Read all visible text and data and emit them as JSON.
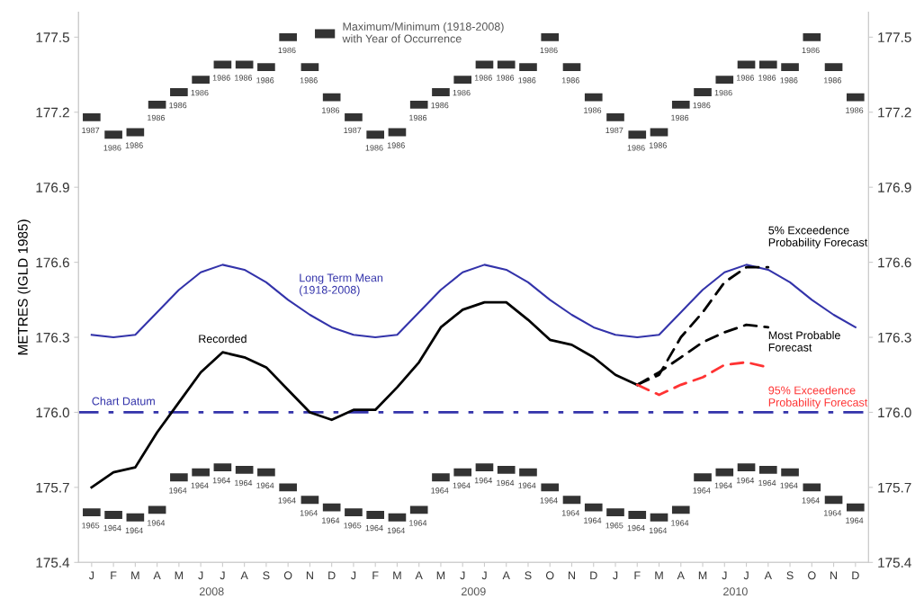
{
  "chart_data": {
    "type": "line",
    "ylabel": "METRES (IGLD 1985)",
    "categories": [
      "J",
      "F",
      "M",
      "A",
      "M",
      "J",
      "J",
      "A",
      "S",
      "O",
      "N",
      "D",
      "J",
      "F",
      "M",
      "A",
      "M",
      "J",
      "J",
      "A",
      "S",
      "O",
      "N",
      "D",
      "J",
      "F",
      "M",
      "A",
      "M",
      "J",
      "J",
      "A",
      "S",
      "O",
      "N",
      "D"
    ],
    "ylim": [
      175.4,
      177.6
    ],
    "yticks": [
      175.4,
      175.7,
      {
        "value": 176,
        "label": "176.0"
      },
      176.3,
      176.6,
      176.9,
      177.2,
      177.5
    ],
    "y2lim": [
      175.4,
      177.6
    ],
    "y2ticks": [
      175.4,
      175.7,
      {
        "value": 176,
        "label": "176.0"
      },
      176.3,
      176.6,
      176.9,
      177.2,
      177.5
    ],
    "grid": false,
    "legend": "top",
    "annotations": [
      "2008",
      "2009",
      "2010",
      "1987",
      "1986",
      "1986",
      "1986",
      "1986",
      "1986",
      "1986",
      "1986",
      "1986",
      "1986",
      "1986",
      "1986",
      "1987",
      "1986",
      "1986",
      "1986",
      "1986",
      "1986",
      "1986",
      "1986",
      "1986",
      "1986",
      "1986",
      "1986",
      "1987",
      "1986",
      "1986",
      "1986",
      "1986",
      "1986",
      "1986",
      "1986",
      "1986",
      "1986",
      "1986",
      "1986",
      "1965",
      "1964",
      "1964",
      "1964",
      "1964",
      "1964",
      "1964",
      "1964",
      "1964",
      "1964",
      "1964",
      "1964",
      "1965",
      "1964",
      "1964",
      "1964",
      "1964",
      "1964",
      "1964",
      "1964",
      "1964",
      "1964",
      "1964",
      "1964",
      "1965",
      "1964",
      "1964",
      "1964",
      "1964",
      "1964",
      "1964",
      "1964",
      "1964",
      "1964",
      "1964",
      "1964"
    ],
    "ref_lines": [
      {
        "axis": "y",
        "value": 176.0,
        "label": "Chart Datum",
        "color": "#3333aa",
        "line_style": "dashdot"
      }
    ],
    "series": [
      {
        "name": "Maximum/Minimum (1918-2008)\nwith Year of Occurrence",
        "type": "scatter",
        "marker": "square",
        "color": "#333333",
        "values": [
          177.18,
          177.11,
          177.12,
          177.23,
          177.28,
          177.33,
          177.39,
          177.39,
          177.38,
          177.5,
          177.38,
          177.26,
          177.18,
          177.11,
          177.12,
          177.23,
          177.28,
          177.33,
          177.39,
          177.39,
          177.38,
          177.5,
          177.38,
          177.26,
          177.18,
          177.11,
          177.12,
          177.23,
          177.28,
          177.33,
          177.39,
          177.39,
          177.38,
          177.5,
          177.38,
          177.26
        ]
      },
      {
        "type": "scatter",
        "marker": "square",
        "color": "#333333",
        "values": [
          175.6,
          175.59,
          175.58,
          175.61,
          175.74,
          175.76,
          175.78,
          175.77,
          175.76,
          175.7,
          175.65,
          175.62,
          175.6,
          175.59,
          175.58,
          175.61,
          175.74,
          175.76,
          175.78,
          175.77,
          175.76,
          175.7,
          175.65,
          175.62,
          175.6,
          175.59,
          175.58,
          175.61,
          175.74,
          175.76,
          175.78,
          175.77,
          175.76,
          175.7,
          175.65,
          175.62
        ]
      },
      {
        "name": "Long Term Mean\n(1918-2008)",
        "color": "#3333aa",
        "line_style": "solid",
        "values": [
          176.31,
          176.3,
          176.31,
          176.4,
          176.49,
          176.56,
          176.59,
          176.57,
          176.52,
          176.45,
          176.39,
          176.34,
          176.31,
          176.3,
          176.31,
          176.4,
          176.49,
          176.56,
          176.59,
          176.57,
          176.52,
          176.45,
          176.39,
          176.34,
          176.31,
          176.3,
          176.31,
          176.4,
          176.49,
          176.56,
          176.59,
          176.57,
          176.52,
          176.45,
          176.39,
          176.34
        ]
      },
      {
        "name": "Recorded",
        "color": "#000000",
        "line_style": "solid",
        "values": [
          175.7,
          175.76,
          175.78,
          175.92,
          176.04,
          176.16,
          176.24,
          176.22,
          176.18,
          176.09,
          176.0,
          175.97,
          176.01,
          176.01,
          176.1,
          176.2,
          176.34,
          176.41,
          176.44,
          176.44,
          176.37,
          176.29,
          176.27,
          176.22,
          176.15,
          176.11,
          null,
          null,
          null,
          null,
          null,
          null,
          null,
          null,
          null,
          null
        ]
      },
      {
        "name": "5% Exceedence\nProbability Forecast",
        "color": "#000000",
        "line_style": "dashed",
        "values": [
          null,
          null,
          null,
          null,
          null,
          null,
          null,
          null,
          null,
          null,
          null,
          null,
          null,
          null,
          null,
          null,
          null,
          null,
          null,
          null,
          null,
          null,
          null,
          null,
          null,
          176.11,
          176.15,
          176.3,
          176.4,
          176.52,
          176.58,
          176.58,
          null,
          null,
          null,
          null
        ]
      },
      {
        "name": "Most Probable\nForecast",
        "color": "#000000",
        "line_style": "dashed",
        "values": [
          null,
          null,
          null,
          null,
          null,
          null,
          null,
          null,
          null,
          null,
          null,
          null,
          null,
          null,
          null,
          null,
          null,
          null,
          null,
          null,
          null,
          null,
          null,
          null,
          null,
          176.11,
          176.16,
          176.22,
          176.28,
          176.32,
          176.35,
          176.34,
          null,
          null,
          null,
          null
        ]
      },
      {
        "name": "95% Exceedence\nProbability Forecast",
        "color": "#ff3333",
        "line_style": "dashed",
        "values": [
          null,
          null,
          null,
          null,
          null,
          null,
          null,
          null,
          null,
          null,
          null,
          null,
          null,
          null,
          null,
          null,
          null,
          null,
          null,
          null,
          null,
          null,
          null,
          null,
          null,
          176.11,
          176.07,
          176.11,
          176.14,
          176.19,
          176.2,
          176.18,
          null,
          null,
          null,
          null
        ]
      }
    ]
  }
}
